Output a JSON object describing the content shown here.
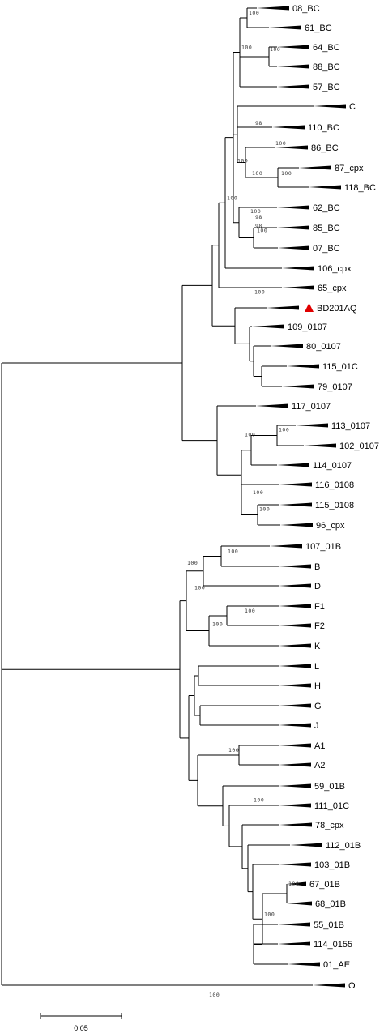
{
  "tree": {
    "taxa": [
      "08_BC",
      "61_BC",
      "64_BC",
      "88_BC",
      "57_BC",
      "C",
      "110_BC",
      "86_BC",
      "87_cpx",
      "118_BC",
      "62_BC",
      "85_BC",
      "07_BC",
      "106_cpx",
      "65_cpx",
      "BD201AQ",
      "109_0107",
      "80_0107",
      "115_01C",
      "79_0107",
      "117_0107",
      "113_0107",
      "102_0107",
      "114_0107",
      "116_0108",
      "115_0108",
      "96_cpx",
      "107_01B",
      "B",
      "D",
      "F1",
      "F2",
      "K",
      "L",
      "H",
      "G",
      "J",
      "A1",
      "A2",
      "59_01B",
      "111_01C",
      "78_cpx",
      "112_01B",
      "103_01B",
      "67_01B",
      "68_01B",
      "55_01B",
      "114_0155",
      "01_AE",
      "O"
    ],
    "highlighted_taxon": "BD201AQ",
    "bootstrap_values": [
      "100",
      "100",
      "100",
      "98",
      "100",
      "100",
      "100",
      "100",
      "98",
      "98",
      "100",
      "100",
      "100",
      "100",
      "100",
      "100",
      "100",
      "100",
      "100",
      "100",
      "100",
      "100",
      "100",
      "100",
      "100",
      "100",
      "100",
      "100",
      "100",
      "100",
      "100",
      "100",
      "99",
      "100",
      "100",
      "96",
      "100",
      "93",
      "100",
      "96",
      "95",
      "100",
      "100"
    ]
  },
  "scale_bar": {
    "label": "0.05"
  }
}
